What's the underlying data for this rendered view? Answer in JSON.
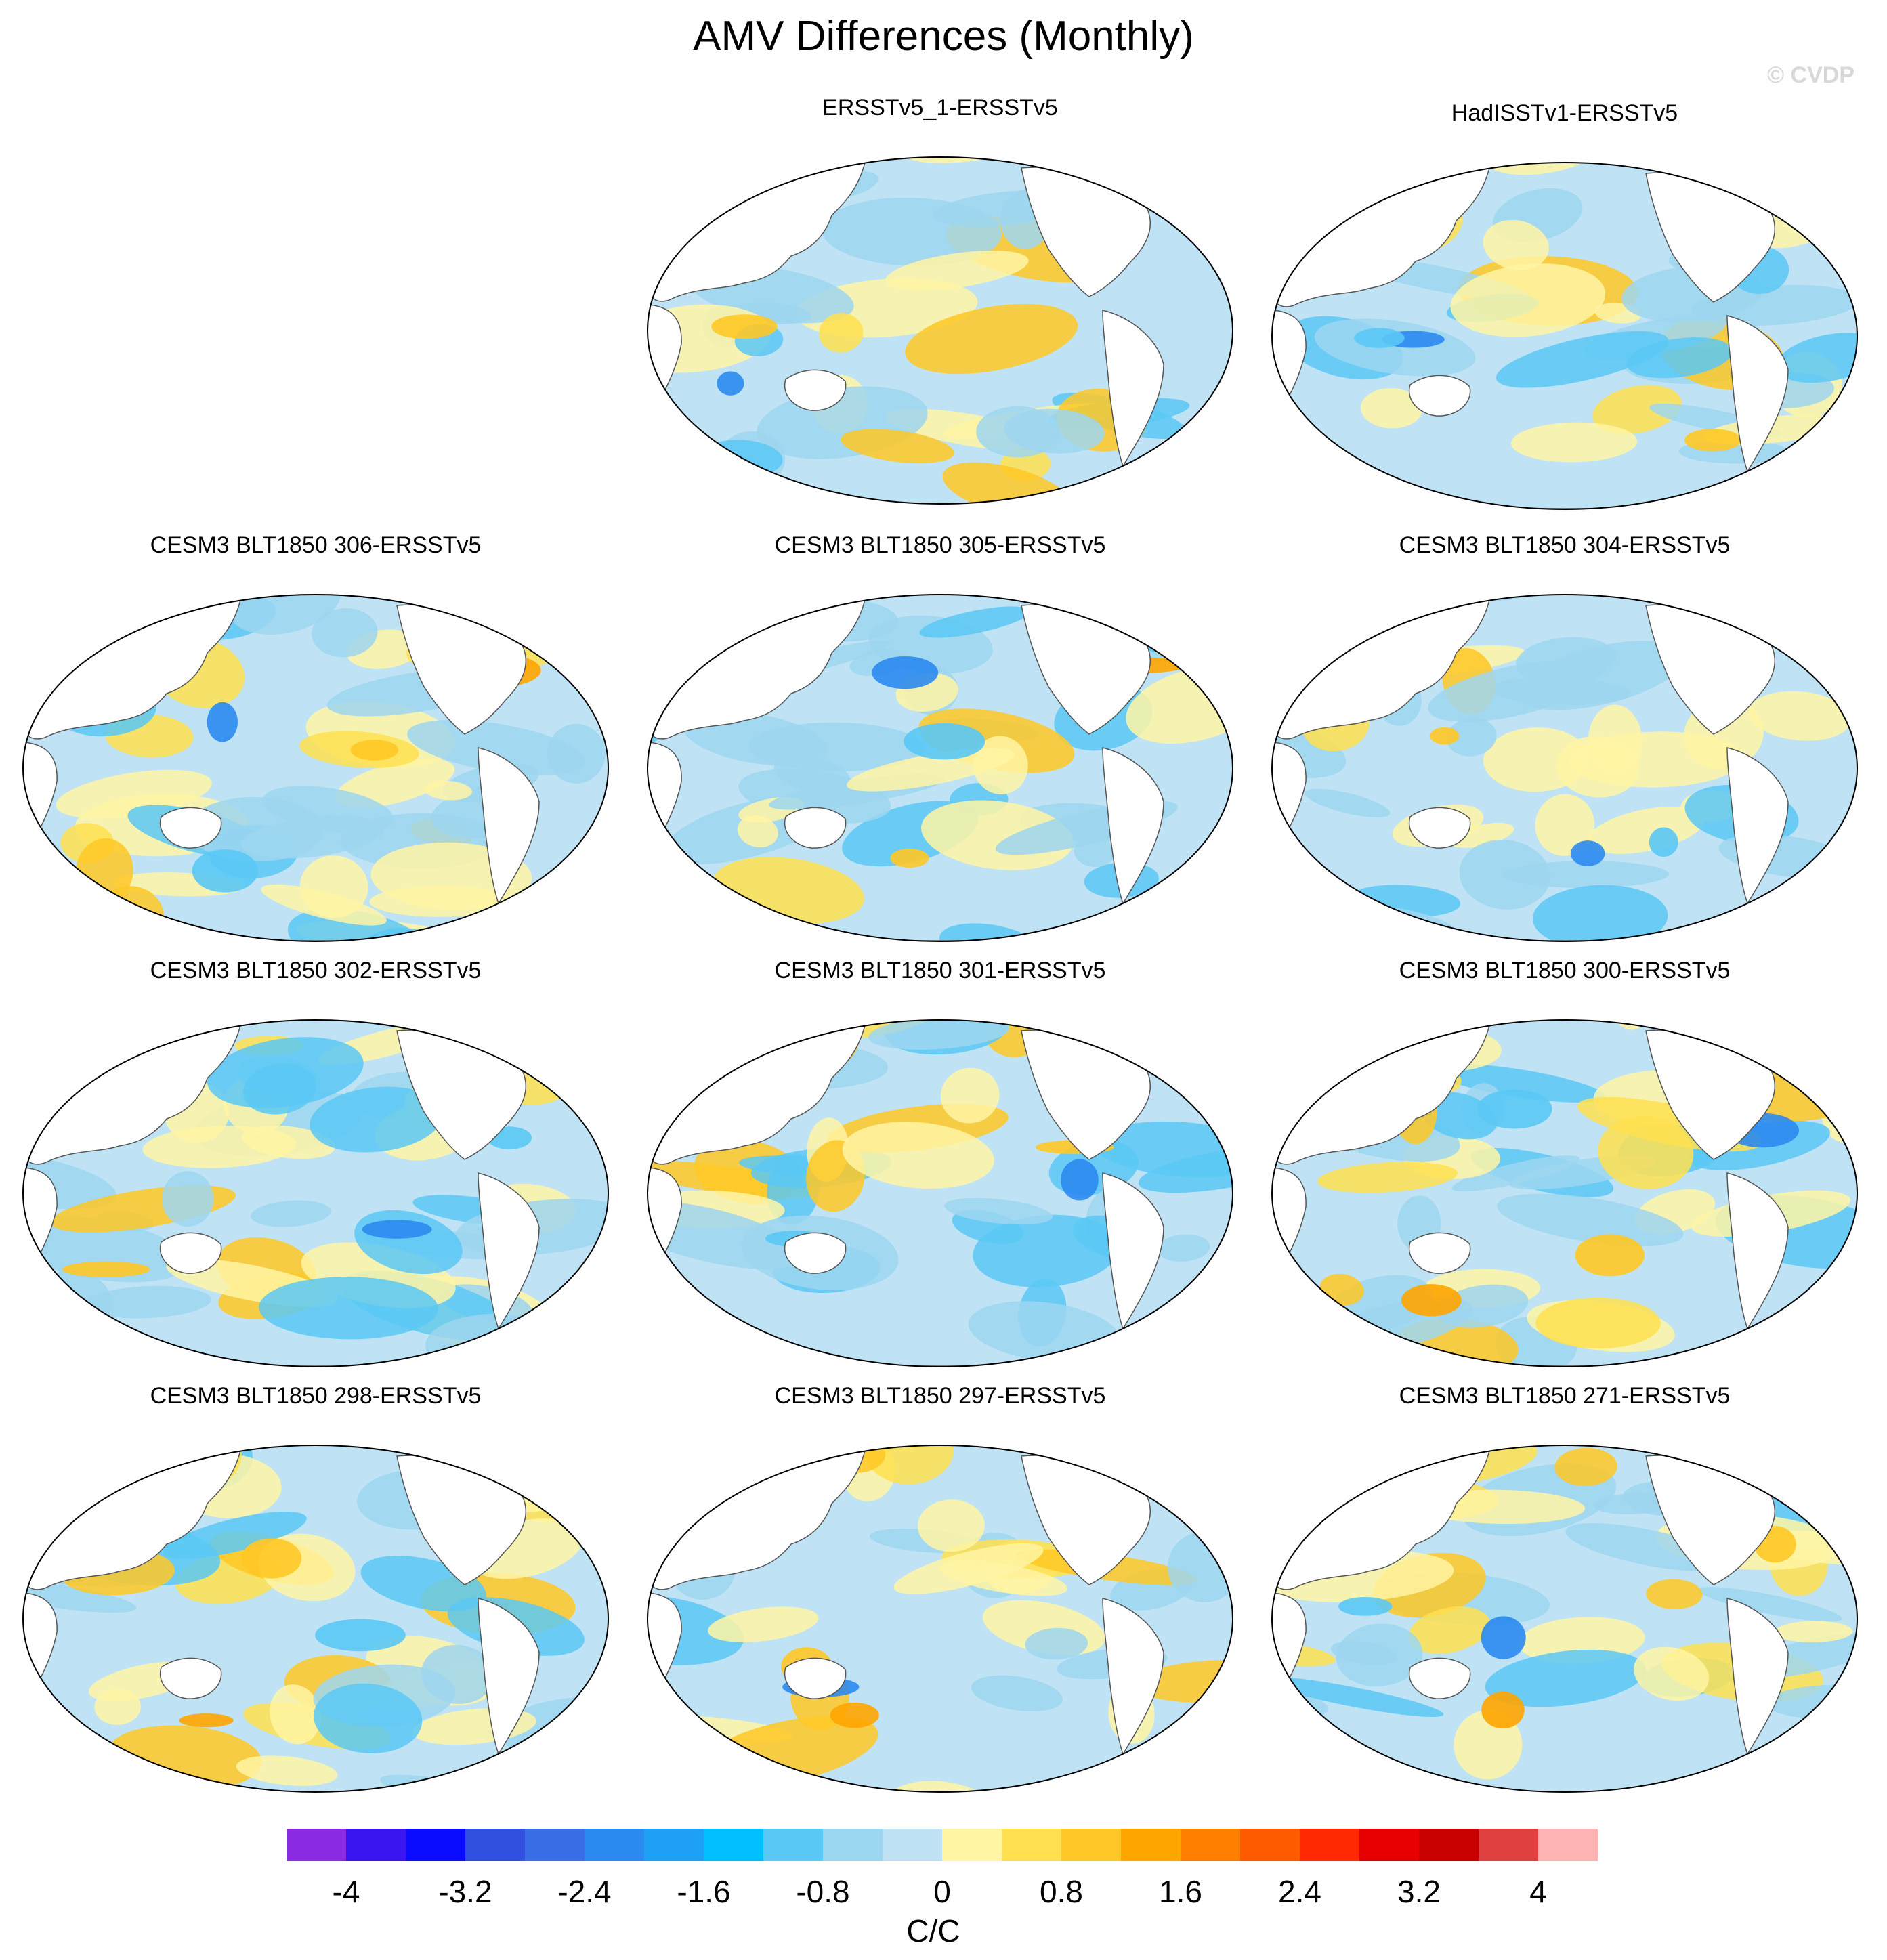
{
  "title": "AMV Differences (Monthly)",
  "watermark": "© CVDP",
  "panels": [
    {
      "id": "p1",
      "title": "ERSSTv5_1-ERSSTv5"
    },
    {
      "id": "p2",
      "title": "HadISSTv1-ERSSTv5"
    },
    {
      "id": "p3",
      "title": "CESM3 BLT1850 306-ERSSTv5"
    },
    {
      "id": "p4",
      "title": "CESM3 BLT1850 305-ERSSTv5"
    },
    {
      "id": "p5",
      "title": "CESM3 BLT1850 304-ERSSTv5"
    },
    {
      "id": "p6",
      "title": "CESM3 BLT1850 302-ERSSTv5"
    },
    {
      "id": "p7",
      "title": "CESM3 BLT1850 301-ERSSTv5"
    },
    {
      "id": "p8",
      "title": "CESM3 BLT1850 300-ERSSTv5"
    },
    {
      "id": "p9",
      "title": "CESM3 BLT1850 298-ERSSTv5"
    },
    {
      "id": "p10",
      "title": "CESM3 BLT1850 297-ERSSTv5"
    },
    {
      "id": "p11",
      "title": "CESM3 BLT1850 271-ERSSTv5"
    }
  ],
  "colorbar": {
    "labels": [
      "-4",
      "-3.2",
      "-2.4",
      "-1.6",
      "-0.8",
      "0",
      "0.8",
      "1.6",
      "2.4",
      "3.2",
      "4"
    ],
    "units": "C/C",
    "colors": [
      "#8a2be2",
      "#3c14f0",
      "#0a0aff",
      "#3250e0",
      "#3a6ee6",
      "#2b8af0",
      "#1ea0f5",
      "#00c0ff",
      "#5ac8f5",
      "#9dd6f0",
      "#bfe3f5",
      "#fff5a5",
      "#ffe050",
      "#ffc826",
      "#ffa500",
      "#ff8000",
      "#ff5a00",
      "#ff2800",
      "#e60000",
      "#c80000",
      "#e04040",
      "#ffb4b4"
    ]
  }
}
